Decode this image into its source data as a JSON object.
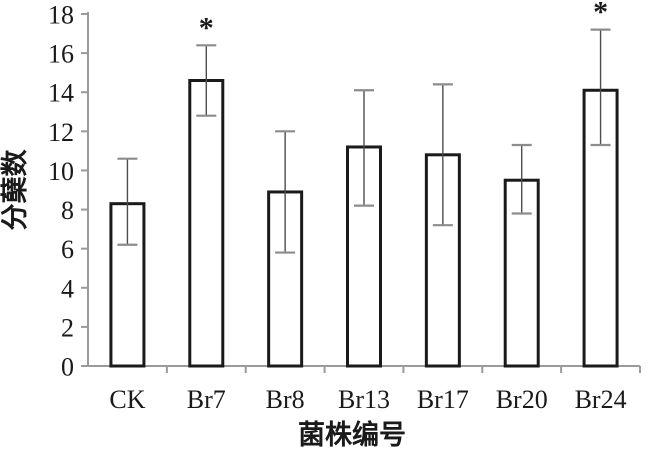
{
  "chart_data": {
    "type": "bar",
    "title": "",
    "xlabel": "菌株编号",
    "ylabel": "分蘖数",
    "categories": [
      "CK",
      "Br7",
      "Br8",
      "Br13",
      "Br17",
      "Br20",
      "Br24"
    ],
    "series": [
      {
        "name": "分蘖数",
        "values": [
          8.3,
          14.6,
          8.9,
          11.2,
          10.8,
          9.5,
          14.1
        ],
        "error_low": [
          6.2,
          12.8,
          5.8,
          8.2,
          7.2,
          7.8,
          11.3
        ],
        "error_high": [
          10.6,
          16.4,
          12.0,
          14.1,
          14.4,
          11.3,
          17.2
        ],
        "significance": [
          "",
          "*",
          "",
          "",
          "",
          "",
          "*"
        ]
      }
    ],
    "ylim": [
      0,
      18
    ],
    "ytick_step": 2,
    "yticks": [
      0,
      2,
      4,
      6,
      8,
      10,
      12,
      14,
      16,
      18
    ],
    "grid": false,
    "legend": null,
    "colors": {
      "bar_fill": "#ffffff",
      "bar_stroke": "#1a1a1a",
      "axis_color": "#9a9a9a",
      "errorbar_line": "#4d4d4d",
      "errorbar_cap": "#8c8c8c",
      "text_color": "#1a1a1a"
    }
  }
}
